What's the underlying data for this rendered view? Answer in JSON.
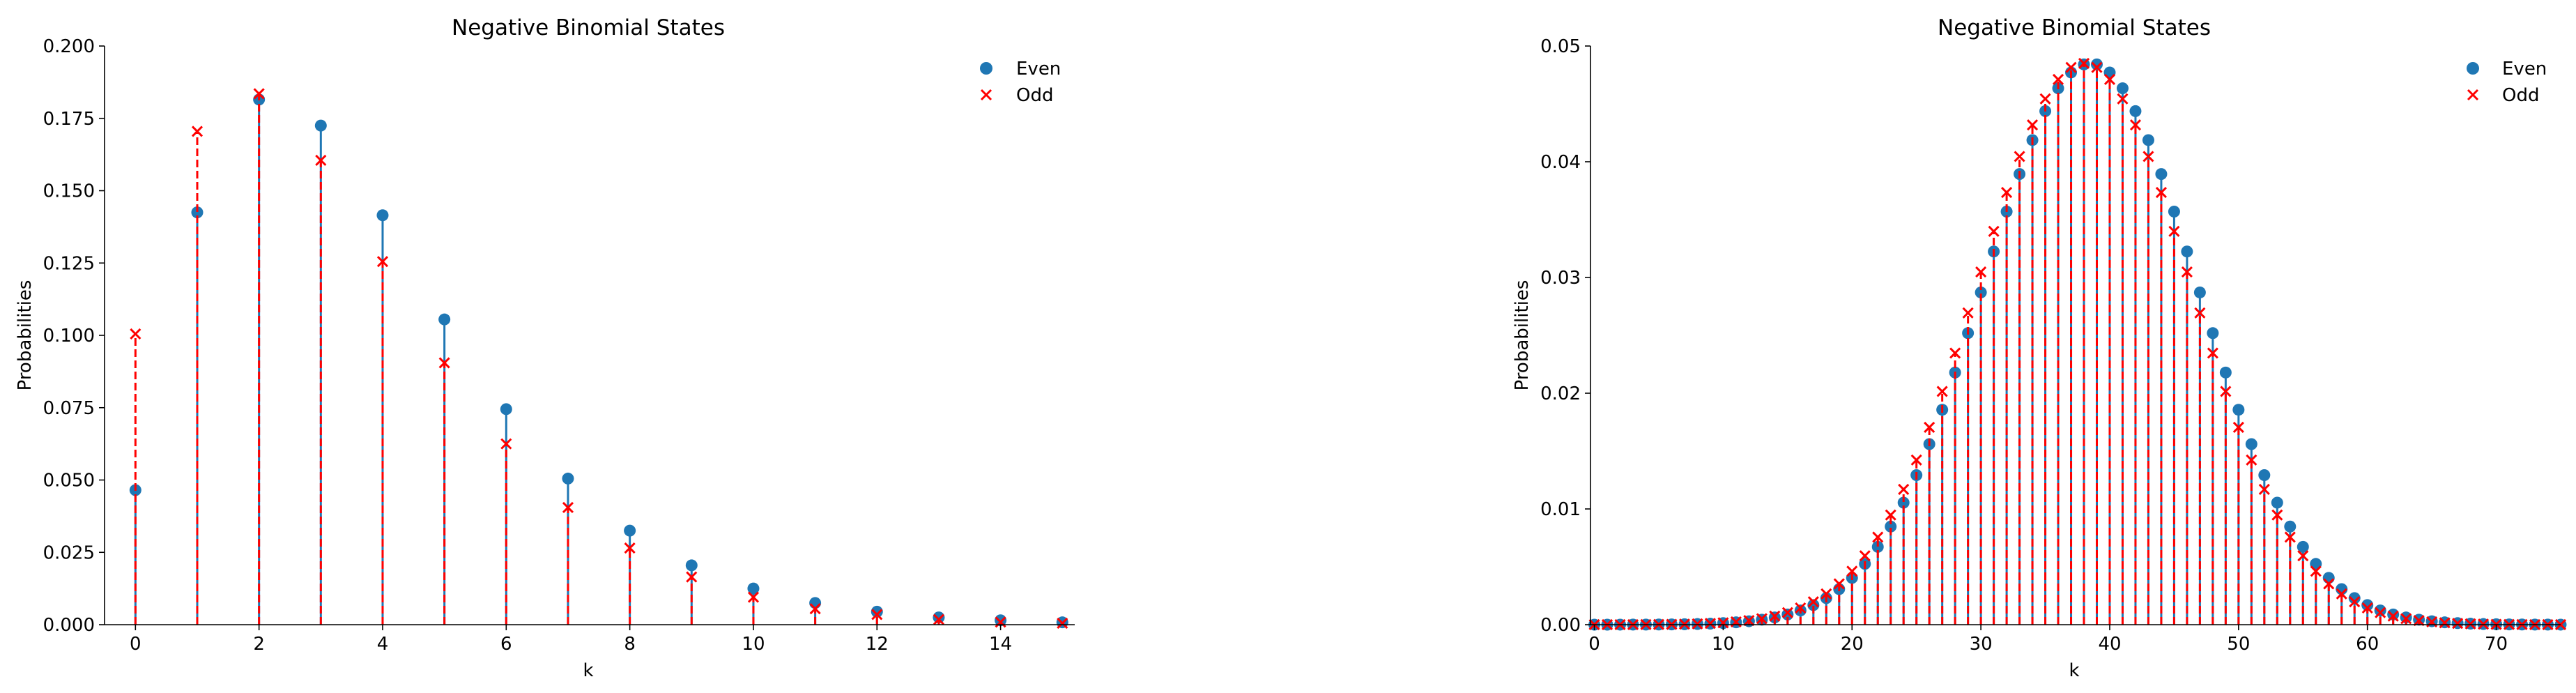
{
  "chart_data": [
    {
      "type": "stem",
      "title": "Negative Binomial States",
      "xlabel": "k",
      "ylabel": "Probabilities",
      "xlim": [
        -0.5,
        15.2
      ],
      "ylim": [
        0,
        0.2
      ],
      "xticks": [
        0,
        2,
        4,
        6,
        8,
        10,
        12,
        14
      ],
      "xtick_labels": [
        "0",
        "2",
        "4",
        "6",
        "8",
        "10",
        "12",
        "14"
      ],
      "yticks": [
        0,
        0.025,
        0.05,
        0.075,
        0.1,
        0.125,
        0.15,
        0.175,
        0.2
      ],
      "ytick_labels": [
        "0.000",
        "0.025",
        "0.050",
        "0.075",
        "0.100",
        "0.125",
        "0.150",
        "0.175",
        "0.200"
      ],
      "legend_position": "top-right",
      "grid": false,
      "x": [
        0,
        1,
        2,
        3,
        4,
        5,
        6,
        7,
        8,
        9,
        10,
        11,
        12,
        13,
        14,
        15
      ],
      "series": [
        {
          "name": "Even",
          "color": "#1f77b4",
          "marker": "circle",
          "line_style": "solid",
          "values": [
            0.0465,
            0.1425,
            0.1815,
            0.1725,
            0.1415,
            0.1055,
            0.0745,
            0.0505,
            0.0325,
            0.0205,
            0.0125,
            0.0075,
            0.0045,
            0.0025,
            0.0015,
            0.0008
          ]
        },
        {
          "name": "Odd",
          "color": "#ff0000",
          "marker": "x",
          "line_style": "dashed",
          "values": [
            0.1005,
            0.1705,
            0.1835,
            0.1605,
            0.1255,
            0.0905,
            0.0625,
            0.0405,
            0.0265,
            0.0165,
            0.0095,
            0.0055,
            0.0035,
            0.0018,
            0.0009,
            0.0005
          ]
        }
      ]
    },
    {
      "type": "stem",
      "title": "Negative Binomial States",
      "xlabel": "k",
      "ylabel": "Probabilities",
      "xlim": [
        -0.3,
        75
      ],
      "ylim": [
        0,
        0.05
      ],
      "xticks": [
        0,
        10,
        20,
        30,
        40,
        50,
        60,
        70
      ],
      "xtick_labels": [
        "0",
        "10",
        "20",
        "30",
        "40",
        "50",
        "60",
        "70"
      ],
      "yticks": [
        0,
        0.01,
        0.02,
        0.03,
        0.04,
        0.05
      ],
      "ytick_labels": [
        "0.00",
        "0.01",
        "0.02",
        "0.03",
        "0.04",
        "0.05"
      ],
      "legend_position": "top-right",
      "grid": false,
      "series": [
        {
          "name": "Even",
          "color": "#1f77b4",
          "marker": "circle",
          "line_style": "solid",
          "distribution": {
            "center": 38.5,
            "sigma": 8.3,
            "peak": 0.0485
          }
        },
        {
          "name": "Odd",
          "color": "#ff0000",
          "marker": "x",
          "line_style": "dashed",
          "distribution": {
            "center": 38.0,
            "sigma": 8.3,
            "peak": 0.0485
          }
        }
      ]
    }
  ]
}
